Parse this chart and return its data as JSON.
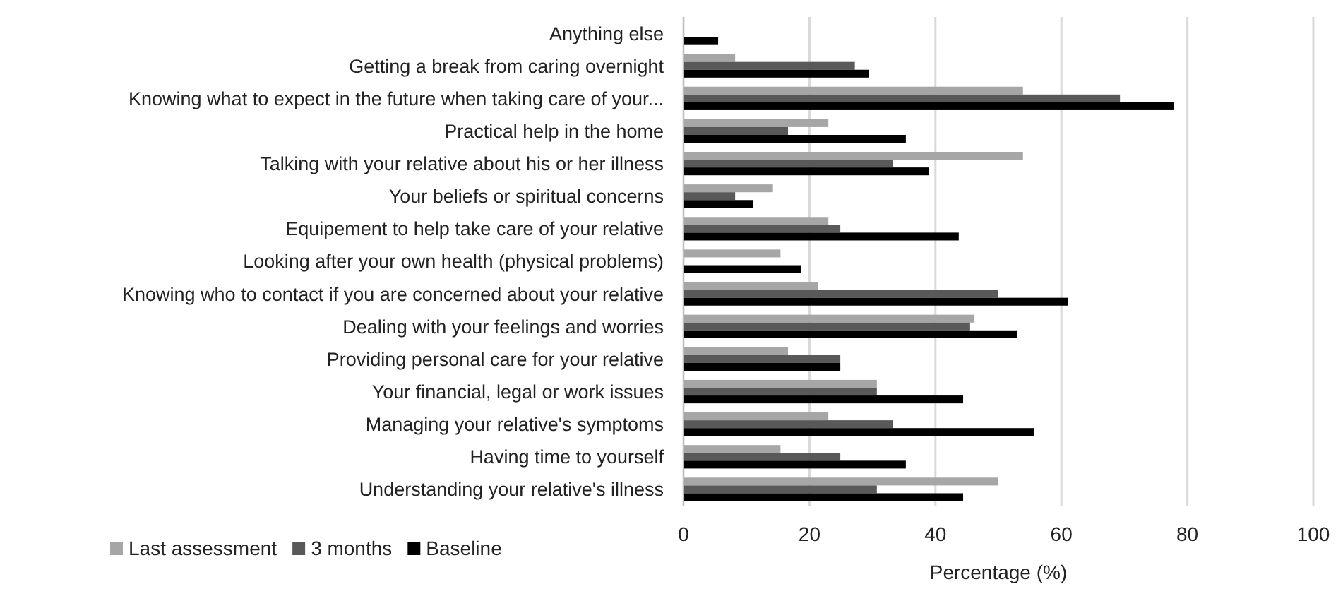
{
  "chart_data": {
    "type": "bar",
    "orientation": "horizontal",
    "xlabel": "Percentage (%)",
    "categories": [
      "Anything else",
      "Getting a break from caring overnight",
      "Knowing what to expect in the future when taking care of your...",
      "Practical help in the home",
      "Talking with your relative about his or her illness",
      "Your beliefs or spiritual concerns",
      "Equipement to help take care of your relative",
      "Looking after your own health (physical problems)",
      "Knowing who to contact if you are concerned about your relative",
      "Dealing with your feelings and worries",
      "Providing personal care for your relative",
      "Your financial, legal or work issues",
      "Managing your relative's symptoms",
      "Having time to yourself",
      "Understanding your relative's illness"
    ],
    "series": [
      {
        "name": "Last assessment",
        "color": "#a6a6a6",
        "values": [
          0,
          8.2,
          53.9,
          23.0,
          53.9,
          14.2,
          23.0,
          15.4,
          21.4,
          46.2,
          16.6,
          30.7,
          23.0,
          15.4,
          50.0
        ]
      },
      {
        "name": "3 months",
        "color": "#595959",
        "values": [
          0,
          27.2,
          69.3,
          16.6,
          33.3,
          8.2,
          24.9,
          0,
          50.0,
          45.5,
          24.9,
          30.7,
          33.3,
          24.9,
          30.7
        ]
      },
      {
        "name": "Baseline",
        "color": "#000000",
        "values": [
          5.5,
          29.4,
          77.8,
          35.3,
          39.0,
          11.1,
          43.7,
          18.7,
          61.1,
          53.0,
          24.9,
          44.4,
          55.7,
          35.3,
          44.4
        ]
      }
    ],
    "xlim": [
      0,
      100
    ],
    "xticks": [
      0,
      20,
      40,
      60,
      80,
      100
    ],
    "grid": "x",
    "legend": "bottom left"
  }
}
